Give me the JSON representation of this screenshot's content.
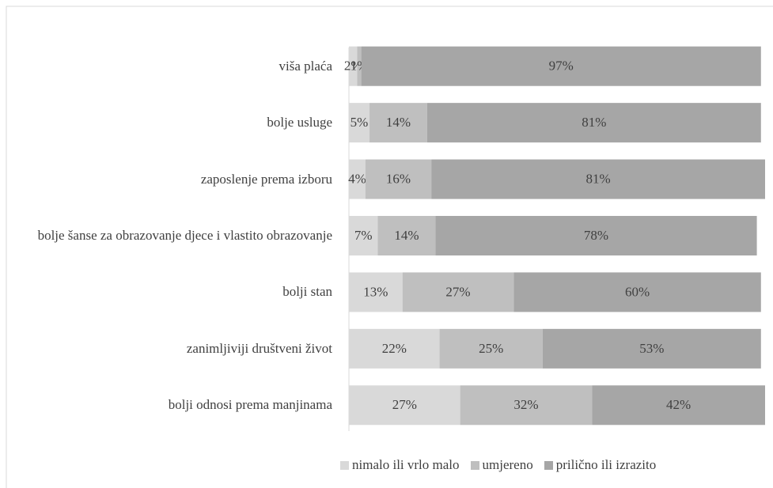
{
  "chart_data": {
    "type": "stacked_bar_horizontal",
    "categories": [
      "viša plaća",
      "bolje usluge",
      "zaposlenje prema izboru",
      "bolje šanse za obrazovanje djece i vlastito obrazovanje",
      "bolji stan",
      "zanimljiviji društveni život",
      "bolji odnosi prema manjinama"
    ],
    "series": [
      {
        "name": "nimalo ili vrlo malo",
        "color": "#d9d9d9",
        "values": [
          2,
          5,
          4,
          7,
          13,
          22,
          27
        ],
        "value_labels": [
          "2%",
          "5%",
          "4%",
          "7%",
          "13%",
          "22%",
          "27%"
        ]
      },
      {
        "name": "umjereno",
        "color": "#bfbfbf",
        "values": [
          1,
          14,
          16,
          14,
          27,
          25,
          32
        ],
        "value_labels": [
          "1%",
          "14%",
          "16%",
          "14%",
          "27%",
          "25%",
          "32%"
        ]
      },
      {
        "name": "prilično ili izrazito",
        "color": "#a6a6a6",
        "values": [
          97,
          81,
          81,
          78,
          60,
          53,
          42
        ],
        "value_labels": [
          "97%",
          "81%",
          "81%",
          "78%",
          "60%",
          "53%",
          "42%"
        ]
      }
    ],
    "legend": "bottom"
  }
}
